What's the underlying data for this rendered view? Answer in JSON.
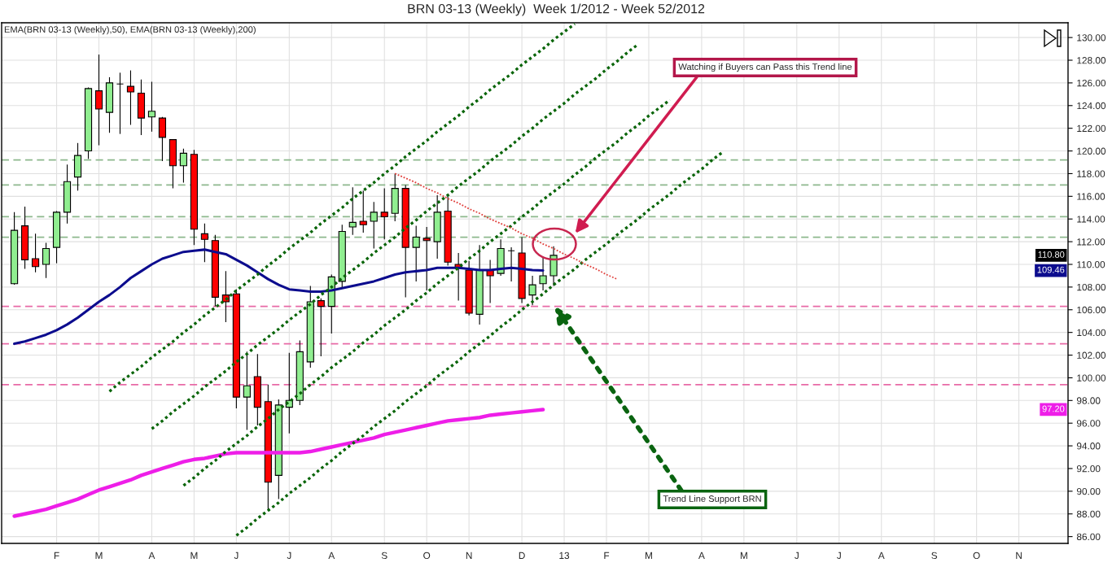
{
  "chart_data": {
    "type": "candlestick",
    "title": "BRN 03-13 (Weekly)  Week 1/2012 - Week 52/2012",
    "annotations": [
      "EMA(BRN 03-13 (Weekly),50), EMA(BRN 03-13 (Weekly),200)",
      "Watching if Buyers can Pass this Trend line",
      "Trend Line Support BRN",
      {
        "text": "109.46",
        "y": 109.46
      },
      {
        "text": "97.20",
        "y": 97.2
      }
    ],
    "categories": [
      null,
      null,
      null,
      null,
      "F",
      null,
      null,
      null,
      "M",
      null,
      null,
      null,
      null,
      "A",
      null,
      null,
      null,
      "M",
      null,
      null,
      null,
      "J",
      null,
      null,
      null,
      null,
      "J",
      null,
      null,
      null,
      "A",
      null,
      null,
      null,
      null,
      "S",
      null,
      null,
      null,
      "O",
      null,
      null,
      null,
      "N",
      null,
      null,
      null,
      null,
      "D",
      null,
      null,
      null,
      "13",
      null,
      null,
      null,
      "F",
      null,
      null,
      null,
      "M",
      null,
      null,
      null,
      null,
      "A",
      null,
      null,
      null,
      "M",
      null,
      null,
      null,
      null,
      "J",
      null,
      null,
      null,
      "J",
      null,
      null,
      null,
      "A",
      null,
      null,
      null,
      null,
      "S",
      null,
      null,
      null,
      "O",
      null,
      null,
      null,
      "N",
      null,
      null,
      null,
      null
    ],
    "ohlc": [
      [
        108.3,
        114.6,
        108.2,
        113.0
      ],
      [
        113.4,
        115.1,
        109.6,
        110.4
      ],
      [
        110.5,
        112.7,
        109.3,
        109.8
      ],
      [
        110.0,
        111.9,
        108.8,
        111.4
      ],
      [
        111.5,
        114.7,
        110.1,
        114.6
      ],
      [
        114.6,
        118.8,
        113.6,
        117.3
      ],
      [
        117.7,
        120.7,
        116.5,
        119.6
      ],
      [
        120.0,
        125.6,
        119.3,
        125.5
      ],
      [
        125.3,
        128.5,
        120.5,
        123.7
      ],
      [
        123.4,
        126.5,
        121.6,
        126.0
      ],
      [
        125.9,
        126.9,
        121.5,
        125.9
      ],
      [
        125.7,
        127.1,
        122.3,
        125.2
      ],
      [
        125.1,
        126.3,
        121.4,
        122.9
      ],
      [
        123.0,
        126.1,
        121.7,
        123.5
      ],
      [
        122.9,
        123.0,
        119.1,
        121.2
      ],
      [
        121.0,
        121.0,
        116.7,
        118.7
      ],
      [
        118.7,
        120.2,
        117.2,
        119.8
      ],
      [
        119.7,
        120.1,
        111.7,
        113.1
      ],
      [
        112.7,
        113.6,
        110.2,
        112.2
      ],
      [
        112.1,
        112.6,
        106.3,
        107.1
      ],
      [
        107.3,
        109.4,
        104.9,
        106.7
      ],
      [
        107.4,
        107.8,
        97.3,
        98.3
      ],
      [
        98.3,
        102.3,
        95.4,
        99.3
      ],
      [
        100.1,
        102.1,
        95.8,
        97.4
      ],
      [
        97.9,
        99.4,
        88.3,
        90.8
      ],
      [
        91.4,
        98.1,
        89.3,
        97.6
      ],
      [
        97.4,
        102.2,
        95.1,
        98.0
      ],
      [
        98.0,
        103.3,
        97.6,
        102.3
      ],
      [
        101.4,
        108.1,
        100.9,
        106.7
      ],
      [
        106.8,
        107.0,
        101.9,
        106.3
      ],
      [
        106.3,
        109.1,
        103.9,
        108.9
      ],
      [
        108.5,
        113.5,
        107.9,
        112.9
      ],
      [
        113.3,
        116.8,
        112.6,
        113.7
      ],
      [
        113.8,
        116.5,
        112.8,
        113.5
      ],
      [
        113.8,
        115.5,
        111.4,
        114.6
      ],
      [
        114.6,
        116.7,
        112.2,
        114.2
      ],
      [
        114.5,
        118.0,
        113.8,
        116.7
      ],
      [
        116.7,
        117.0,
        107.1,
        111.5
      ],
      [
        111.5,
        113.4,
        108.5,
        112.4
      ],
      [
        112.3,
        113.3,
        107.7,
        112.1
      ],
      [
        112.0,
        116.1,
        110.5,
        114.6
      ],
      [
        114.7,
        116.0,
        109.9,
        110.2
      ],
      [
        110.0,
        111.0,
        106.8,
        109.7
      ],
      [
        109.5,
        110.3,
        105.5,
        105.7
      ],
      [
        105.6,
        111.7,
        104.7,
        109.5
      ],
      [
        109.5,
        110.4,
        106.6,
        109.0
      ],
      [
        109.2,
        112.2,
        109.0,
        111.4
      ],
      [
        111.2,
        111.5,
        108.5,
        111.2
      ],
      [
        111.0,
        112.4,
        106.6,
        107.0
      ],
      [
        107.3,
        109.0,
        106.4,
        108.2
      ],
      [
        108.3,
        110.7,
        107.7,
        109.0
      ],
      [
        109.0,
        111.6,
        108.1,
        110.8
      ],
      null,
      null,
      null,
      null,
      null,
      null,
      null,
      null,
      null,
      null,
      null,
      null,
      null,
      null,
      null,
      null,
      null,
      null,
      null,
      null,
      null,
      null,
      null,
      null,
      null,
      null,
      null,
      null,
      null,
      null,
      null,
      null,
      null,
      null,
      null,
      null,
      null,
      null,
      null,
      null,
      null,
      null,
      null,
      null,
      null,
      null,
      null,
      null
    ],
    "colors": [
      "#90ee90",
      "#ff0000",
      "#ff0000",
      "#90ee90",
      "#90ee90",
      "#90ee90",
      "#90ee90",
      "#90ee90",
      "#ff0000",
      "#90ee90",
      "#000000",
      "#ff0000",
      "#ff0000",
      "#90ee90",
      "#ff0000",
      "#ff0000",
      "#90ee90",
      "#ff0000",
      "#ff0000",
      "#ff0000",
      "#ff0000",
      "#ff0000",
      "#90ee90",
      "#ff0000",
      "#ff0000",
      "#90ee90",
      "#90ee90",
      "#90ee90",
      "#90ee90",
      "#ff0000",
      "#90ee90",
      "#90ee90",
      "#90ee90",
      "#ff0000",
      "#90ee90",
      "#ff0000",
      "#90ee90",
      "#ff0000",
      "#90ee90",
      "#ff0000",
      "#90ee90",
      "#ff0000",
      "#ff0000",
      "#ff0000",
      "#90ee90",
      "#ff0000",
      "#90ee90",
      "#000000",
      "#ff0000",
      "#90ee90",
      "#90ee90",
      "#90ee90",
      null,
      null,
      null,
      null,
      null,
      null,
      null,
      null,
      null,
      null,
      null,
      null,
      null,
      null,
      null,
      null,
      null,
      null,
      null,
      null,
      null,
      null,
      null,
      null,
      null,
      null,
      null,
      null,
      null,
      null,
      null,
      null,
      null,
      null,
      null,
      null,
      null,
      null,
      null,
      null,
      null,
      null,
      null,
      null,
      null,
      null,
      null,
      null
    ],
    "value_labels": [
      null,
      null,
      null,
      null,
      null,
      null,
      null,
      null,
      null,
      null,
      null,
      null,
      null,
      null,
      null,
      null,
      null,
      null,
      null,
      null,
      null,
      null,
      null,
      null,
      null,
      null,
      null,
      null,
      null,
      null,
      null,
      null,
      null,
      null,
      null,
      null,
      null,
      null,
      null,
      null,
      null,
      null,
      null,
      null,
      null,
      null,
      null,
      null,
      null,
      null,
      null,
      "110.80",
      null,
      null,
      null,
      null,
      null,
      null,
      null,
      null,
      null,
      null,
      null,
      null,
      null,
      null,
      null,
      null,
      null,
      null,
      null,
      null,
      null,
      null,
      null,
      null,
      null,
      null,
      null,
      null,
      null,
      null,
      null,
      null,
      null,
      null,
      null,
      null,
      null,
      null,
      null,
      null,
      null,
      null,
      null,
      null,
      null,
      null,
      null,
      null
    ],
    "series": [
      {
        "type": "line",
        "color": "#0c0c8e",
        "values": [
          103.0,
          103.2,
          103.5,
          103.8,
          104.2,
          104.7,
          105.3,
          106.0,
          106.7,
          107.3,
          108.0,
          108.8,
          109.4,
          110.0,
          110.5,
          110.8,
          111.1,
          111.2,
          111.3,
          111.1,
          110.9,
          110.4,
          109.9,
          109.3,
          108.7,
          108.2,
          107.8,
          107.7,
          107.6,
          107.6,
          107.7,
          107.9,
          108.1,
          108.3,
          108.5,
          108.8,
          109.1,
          109.3,
          109.4,
          109.5,
          109.7,
          109.7,
          109.7,
          109.6,
          109.5,
          109.5,
          109.6,
          109.7,
          109.6,
          109.5,
          109.46,
          null,
          null,
          null,
          null,
          null,
          null,
          null,
          null,
          null,
          null,
          null,
          null,
          null,
          null,
          null,
          null,
          null,
          null,
          null,
          null,
          null,
          null,
          null,
          null,
          null,
          null,
          null,
          null,
          null,
          null,
          null,
          null,
          null,
          null,
          null,
          null,
          null,
          null,
          null,
          null,
          null,
          null,
          null,
          null,
          null,
          null,
          null,
          null,
          null
        ]
      },
      {
        "type": "line",
        "color": "#ee1ee8",
        "values": [
          87.8,
          88.0,
          88.2,
          88.4,
          88.7,
          89.0,
          89.3,
          89.7,
          90.1,
          90.4,
          90.7,
          91.0,
          91.4,
          91.7,
          92.0,
          92.3,
          92.6,
          92.8,
          92.9,
          93.1,
          93.3,
          93.4,
          93.4,
          93.4,
          93.4,
          93.4,
          93.4,
          93.4,
          93.5,
          93.7,
          93.9,
          94.1,
          94.3,
          94.5,
          94.7,
          95.0,
          95.2,
          95.4,
          95.6,
          95.8,
          96.0,
          96.2,
          96.3,
          96.4,
          96.5,
          96.7,
          96.8,
          96.9,
          97.0,
          97.1,
          97.2,
          null,
          null,
          null,
          null,
          null,
          null,
          null,
          null,
          null,
          null,
          null,
          null,
          null,
          null,
          null,
          null,
          null,
          null,
          null,
          null,
          null,
          null,
          null,
          null,
          null,
          null,
          null,
          null,
          null,
          null,
          null,
          null,
          null,
          null,
          null,
          null,
          null,
          null,
          null,
          null,
          null,
          null,
          null,
          null,
          null,
          null,
          null,
          null,
          null
        ]
      },
      {
        "type": "line",
        "color": "#0a650a",
        "line_style": "dotted",
        "values": [
          null,
          null,
          null,
          null,
          null,
          null,
          null,
          null,
          null,
          98.8,
          99.6,
          100.3,
          101.0,
          101.8,
          102.5,
          103.2,
          104.0,
          104.7,
          105.5,
          106.2,
          106.9,
          107.7,
          108.4,
          109.1,
          109.9,
          110.6,
          111.4,
          112.1,
          112.8,
          113.6,
          114.3,
          115.0,
          115.8,
          116.5,
          117.2,
          118.0,
          118.7,
          119.5,
          120.2,
          120.9,
          121.7,
          122.4,
          123.1,
          123.9,
          124.6,
          125.4,
          126.1,
          126.8,
          127.6,
          128.3,
          129.0,
          129.8,
          130.5,
          131.2,
          null,
          null,
          null,
          null,
          null,
          null,
          null,
          null,
          null,
          null,
          null,
          null,
          null,
          null,
          null,
          null,
          null,
          null,
          null,
          null,
          null,
          null,
          null,
          null,
          null,
          null,
          null,
          null,
          null,
          null,
          null,
          null,
          null,
          null,
          null,
          null,
          null,
          null,
          null,
          null,
          null,
          null,
          null,
          null,
          null,
          null
        ]
      },
      {
        "type": "line",
        "color": "#0a650a",
        "line_style": "dotted",
        "values": [
          null,
          null,
          null,
          null,
          null,
          null,
          null,
          null,
          null,
          null,
          null,
          null,
          null,
          95.5,
          96.2,
          97.0,
          97.7,
          98.4,
          99.2,
          99.9,
          100.6,
          101.4,
          102.1,
          102.9,
          103.6,
          104.3,
          105.1,
          105.8,
          106.5,
          107.3,
          108.0,
          108.8,
          109.5,
          110.2,
          111.0,
          111.7,
          112.4,
          113.2,
          113.9,
          114.7,
          115.4,
          116.1,
          116.9,
          117.6,
          118.3,
          119.1,
          119.8,
          120.5,
          121.3,
          122.0,
          122.8,
          123.5,
          124.2,
          125.0,
          125.7,
          126.4,
          127.2,
          127.9,
          128.7,
          129.4,
          null,
          null,
          null,
          null,
          null,
          null,
          null,
          null,
          null,
          null,
          null,
          null,
          null,
          null,
          null,
          null,
          null,
          null,
          null,
          null,
          null,
          null,
          null,
          null,
          null,
          null,
          null,
          null,
          null,
          null,
          null,
          null,
          null,
          null,
          null,
          null,
          null,
          null,
          null,
          null
        ]
      },
      {
        "type": "line",
        "color": "#0a650a",
        "line_style": "dotted",
        "values": [
          null,
          null,
          null,
          null,
          null,
          null,
          null,
          null,
          null,
          null,
          null,
          null,
          null,
          null,
          null,
          null,
          90.5,
          91.2,
          92.0,
          92.7,
          93.5,
          94.2,
          94.9,
          95.7,
          96.4,
          97.2,
          97.9,
          98.6,
          99.4,
          100.1,
          100.9,
          101.6,
          102.3,
          103.1,
          103.8,
          104.6,
          105.3,
          106.0,
          106.8,
          107.5,
          108.3,
          109.0,
          109.7,
          110.5,
          111.2,
          112.0,
          112.7,
          113.4,
          114.2,
          114.9,
          115.7,
          116.4,
          117.1,
          117.9,
          118.6,
          119.4,
          120.1,
          120.8,
          121.6,
          122.3,
          123.1,
          123.8,
          124.5,
          null,
          null,
          null,
          null,
          null,
          null,
          null,
          null,
          null,
          null,
          null,
          null,
          null,
          null,
          null,
          null,
          null,
          null,
          null,
          null,
          null,
          null,
          null,
          null,
          null,
          null,
          null,
          null,
          null,
          null,
          null,
          null,
          null,
          null,
          null,
          null,
          null
        ]
      },
      {
        "type": "line",
        "color": "#0a650a",
        "line_style": "dotted",
        "values": [
          null,
          null,
          null,
          null,
          null,
          null,
          null,
          null,
          null,
          null,
          null,
          null,
          null,
          null,
          null,
          null,
          null,
          null,
          null,
          null,
          null,
          86.1,
          86.8,
          87.6,
          88.3,
          89.0,
          89.8,
          90.5,
          91.2,
          92.0,
          92.7,
          93.5,
          94.2,
          94.9,
          95.7,
          96.4,
          97.1,
          97.9,
          98.6,
          99.3,
          100.1,
          100.8,
          101.5,
          102.3,
          103.0,
          103.7,
          104.5,
          105.2,
          106.0,
          106.7,
          107.4,
          108.2,
          108.9,
          109.6,
          110.4,
          111.1,
          111.8,
          112.6,
          113.3,
          114.0,
          114.8,
          115.5,
          116.2,
          117.0,
          117.7,
          118.4,
          119.2,
          119.9,
          null,
          null,
          null,
          null,
          null,
          null,
          null,
          null,
          null,
          null,
          null,
          null,
          null,
          null,
          null,
          null,
          null,
          null,
          null,
          null,
          null,
          null,
          null,
          null,
          null,
          null,
          null,
          null,
          null,
          null,
          null,
          null
        ]
      },
      {
        "type": "line",
        "color": "#e0403c",
        "line_style": "dotted",
        "values": [
          null,
          null,
          null,
          null,
          null,
          null,
          null,
          null,
          null,
          null,
          null,
          null,
          null,
          null,
          null,
          null,
          null,
          null,
          null,
          null,
          null,
          null,
          null,
          null,
          null,
          null,
          null,
          null,
          null,
          null,
          null,
          null,
          null,
          null,
          null,
          null,
          118.0,
          117.6,
          117.2,
          116.7,
          116.3,
          115.8,
          115.4,
          114.9,
          114.5,
          114.0,
          113.6,
          113.2,
          112.7,
          112.3,
          111.8,
          111.4,
          110.9,
          110.5,
          110.0,
          109.6,
          109.1,
          108.7,
          null,
          null,
          null,
          null,
          null,
          null,
          null,
          null,
          null,
          null,
          null,
          null,
          null,
          null,
          null,
          null,
          null,
          null,
          null,
          null,
          null,
          null,
          null,
          null,
          null,
          null,
          null,
          null,
          null,
          null,
          null,
          null,
          null,
          null,
          null,
          null,
          null,
          null,
          null,
          null,
          null,
          null
        ]
      }
    ],
    "ref_lines": [
      {
        "axis": "y",
        "value": 119.2,
        "color": "#8db88d",
        "line_style": "dashed"
      },
      {
        "axis": "y",
        "value": 117.0,
        "color": "#8db88d",
        "line_style": "dashed"
      },
      {
        "axis": "y",
        "value": 114.2,
        "color": "#8db88d",
        "line_style": "dashed"
      },
      {
        "axis": "y",
        "value": 112.4,
        "color": "#8db88d",
        "line_style": "dashed"
      },
      {
        "axis": "y",
        "value": 106.3,
        "color": "#e86aa6",
        "line_style": "dashed"
      },
      {
        "axis": "y",
        "value": 103.0,
        "color": "#e86aa6",
        "line_style": "dashed"
      },
      {
        "axis": "y",
        "value": 99.4,
        "color": "#e86aa6",
        "line_style": "dashed"
      }
    ],
    "ylim": [
      85.4,
      131.3
    ],
    "yticks": [
      {
        "value": 86,
        "label": "86.00"
      },
      {
        "value": 88,
        "label": "88.00"
      },
      {
        "value": 90,
        "label": "90.00"
      },
      {
        "value": 92,
        "label": "92.00"
      },
      {
        "value": 94,
        "label": "94.00"
      },
      {
        "value": 96,
        "label": "96.00"
      },
      {
        "value": 98,
        "label": "98.00"
      },
      {
        "value": 100,
        "label": "100.00"
      },
      {
        "value": 102,
        "label": "102.00"
      },
      {
        "value": 104,
        "label": "104.00"
      },
      {
        "value": 106,
        "label": "106.00"
      },
      {
        "value": 108,
        "label": "108.00"
      },
      {
        "value": 110,
        "label": "110.00"
      },
      {
        "value": 112,
        "label": "112.00"
      },
      {
        "value": 114,
        "label": "114.00"
      },
      {
        "value": 116,
        "label": "116.00"
      },
      {
        "value": 118,
        "label": "118.00"
      },
      {
        "value": 120,
        "label": "120.00"
      },
      {
        "value": 122,
        "label": "122.00"
      },
      {
        "value": 124,
        "label": "124.00"
      },
      {
        "value": 126,
        "label": "126.00"
      },
      {
        "value": 128,
        "label": "128.00"
      },
      {
        "value": 130,
        "label": "130.00"
      }
    ],
    "grid": true
  }
}
